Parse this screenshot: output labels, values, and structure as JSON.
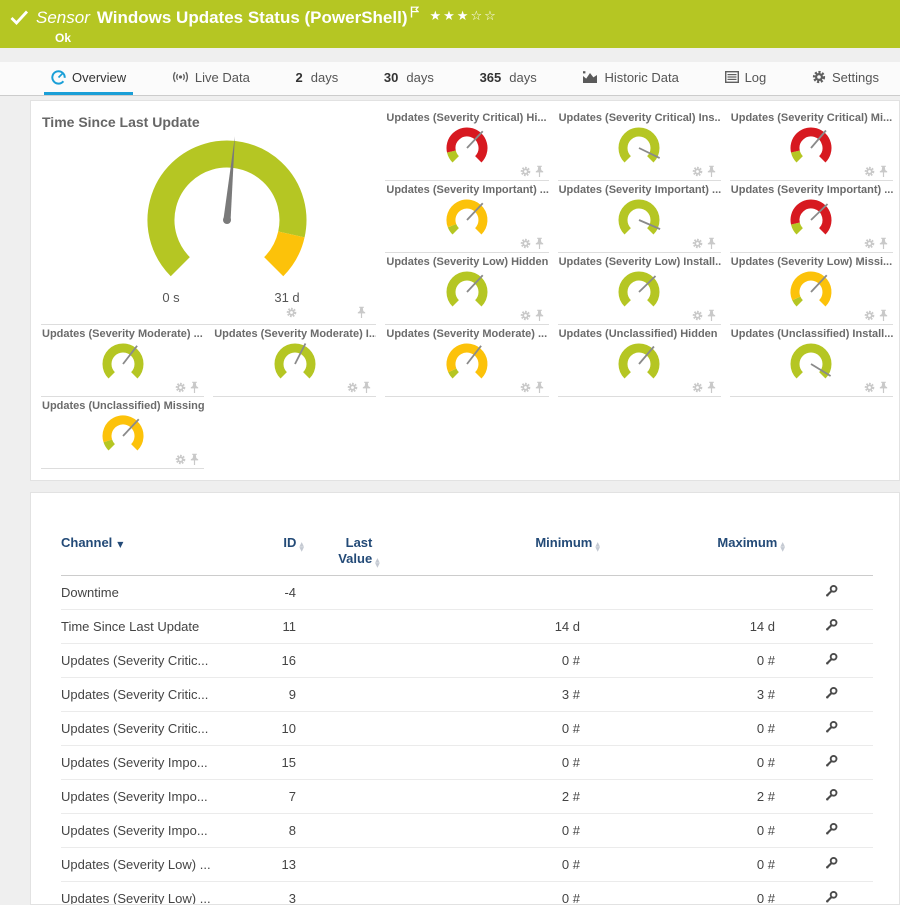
{
  "colors": {
    "status_green": "#b5c623",
    "warn_yellow": "#fcc20a",
    "alarm_red": "#d71920",
    "accent_blue": "#1a9fd7",
    "table_header_navy": "#234a77",
    "needle_gray": "#7a7a7a"
  },
  "header": {
    "kind": "Sensor",
    "title": "Windows Updates Status (PowerShell)",
    "status": "Ok",
    "stars": "★★★☆☆",
    "stars_filled": 3,
    "stars_total": 5
  },
  "tabs": [
    {
      "id": "overview",
      "label": "Overview",
      "active": true
    },
    {
      "id": "live-data",
      "label": "Live Data",
      "active": false
    },
    {
      "id": "2-days",
      "num": "2",
      "label": "days",
      "active": false
    },
    {
      "id": "30-days",
      "num": "30",
      "label": "days",
      "active": false
    },
    {
      "id": "365-days",
      "num": "365",
      "label": "days",
      "active": false
    },
    {
      "id": "historic-data",
      "label": "Historic Data",
      "active": false
    },
    {
      "id": "log",
      "label": "Log",
      "active": false
    },
    {
      "id": "settings",
      "label": "Settings",
      "active": false
    }
  ],
  "chart_data": {
    "type": "gauges",
    "big_gauge": {
      "title": "Time Since Last Update",
      "min_label": "0 s",
      "max_label": "31 d",
      "needle_pct": 0.52,
      "segments": [
        {
          "from": 0,
          "to": 0.88,
          "color": "#b5c623"
        },
        {
          "from": 0.88,
          "to": 1,
          "color": "#fcc20a"
        }
      ]
    },
    "small_gauges": [
      {
        "label": "Updates (Severity Critical) Hi...",
        "needle_pct": 0.66,
        "segments": [
          {
            "from": 0,
            "to": 0.12,
            "color": "#b5c623"
          },
          {
            "from": 0.12,
            "to": 1,
            "color": "#d71920"
          }
        ]
      },
      {
        "label": "Updates (Severity Critical) Ins...",
        "needle_pct": 0.93,
        "segments": [
          {
            "from": 0,
            "to": 1,
            "color": "#b5c623"
          }
        ]
      },
      {
        "label": "Updates (Severity Critical) Mi...",
        "needle_pct": 0.65,
        "segments": [
          {
            "from": 0,
            "to": 0.12,
            "color": "#b5c623"
          },
          {
            "from": 0.12,
            "to": 1,
            "color": "#d71920"
          }
        ]
      },
      {
        "label": "Updates (Severity Important) ...",
        "needle_pct": 0.66,
        "segments": [
          {
            "from": 0,
            "to": 0.09,
            "color": "#b5c623"
          },
          {
            "from": 0.09,
            "to": 1,
            "color": "#fcc20a"
          }
        ]
      },
      {
        "label": "Updates (Severity Important) ...",
        "needle_pct": 0.92,
        "segments": [
          {
            "from": 0,
            "to": 1,
            "color": "#b5c623"
          }
        ]
      },
      {
        "label": "Updates (Severity Important) ...",
        "needle_pct": 0.67,
        "segments": [
          {
            "from": 0,
            "to": 0.12,
            "color": "#b5c623"
          },
          {
            "from": 0.12,
            "to": 1,
            "color": "#d71920"
          }
        ]
      },
      {
        "label": "Updates (Severity Low) Hidden",
        "needle_pct": 0.66,
        "segments": [
          {
            "from": 0,
            "to": 1,
            "color": "#b5c623"
          }
        ]
      },
      {
        "label": "Updates (Severity Low) Install...",
        "needle_pct": 0.67,
        "segments": [
          {
            "from": 0,
            "to": 1,
            "color": "#b5c623"
          }
        ]
      },
      {
        "label": "Updates (Severity Low) Missi...",
        "needle_pct": 0.66,
        "segments": [
          {
            "from": 0,
            "to": 0.08,
            "color": "#b5c623"
          },
          {
            "from": 0.08,
            "to": 1,
            "color": "#fcc20a"
          }
        ]
      },
      {
        "label": "Updates (Severity Moderate) ...",
        "needle_pct": 0.64,
        "segments": [
          {
            "from": 0,
            "to": 1,
            "color": "#b5c623"
          }
        ]
      },
      {
        "label": "Updates (Severity Moderate) I...",
        "needle_pct": 0.6,
        "segments": [
          {
            "from": 0,
            "to": 1,
            "color": "#b5c623"
          }
        ]
      },
      {
        "label": "Updates (Severity Moderate) ...",
        "needle_pct": 0.64,
        "segments": [
          {
            "from": 0,
            "to": 0.08,
            "color": "#b5c623"
          },
          {
            "from": 0.08,
            "to": 1,
            "color": "#fcc20a"
          }
        ]
      },
      {
        "label": "Updates (Unclassified) Hidden",
        "needle_pct": 0.65,
        "segments": [
          {
            "from": 0,
            "to": 1,
            "color": "#b5c623"
          }
        ]
      },
      {
        "label": "Updates (Unclassified) Install...",
        "needle_pct": 0.95,
        "segments": [
          {
            "from": 0,
            "to": 1,
            "color": "#b5c623"
          }
        ]
      },
      {
        "label": "Updates (Unclassified) Missing",
        "needle_pct": 0.66,
        "segments": [
          {
            "from": 0,
            "to": 0.1,
            "color": "#b5c623"
          },
          {
            "from": 0.1,
            "to": 1,
            "color": "#fcc20a"
          }
        ]
      }
    ]
  },
  "table": {
    "headers": {
      "channel": "Channel",
      "id": "ID",
      "last_value": "Last Value",
      "minimum": "Minimum",
      "maximum": "Maximum"
    },
    "rows": [
      {
        "channel": "Downtime",
        "id": "-4",
        "last_value": "",
        "min": "",
        "max": ""
      },
      {
        "channel": "Time Since Last Update",
        "id": "11",
        "last_value": "",
        "min": "14 d",
        "max": "14 d"
      },
      {
        "channel": "Updates (Severity Critic...",
        "id": "16",
        "last_value": "",
        "min": "0 #",
        "max": "0 #"
      },
      {
        "channel": "Updates (Severity Critic...",
        "id": "9",
        "last_value": "",
        "min": "3 #",
        "max": "3 #"
      },
      {
        "channel": "Updates (Severity Critic...",
        "id": "10",
        "last_value": "",
        "min": "0 #",
        "max": "0 #"
      },
      {
        "channel": "Updates (Severity Impo...",
        "id": "15",
        "last_value": "",
        "min": "0 #",
        "max": "0 #"
      },
      {
        "channel": "Updates (Severity Impo...",
        "id": "7",
        "last_value": "",
        "min": "2 #",
        "max": "2 #"
      },
      {
        "channel": "Updates (Severity Impo...",
        "id": "8",
        "last_value": "",
        "min": "0 #",
        "max": "0 #"
      },
      {
        "channel": "Updates (Severity Low) ...",
        "id": "13",
        "last_value": "",
        "min": "0 #",
        "max": "0 #"
      },
      {
        "channel": "Updates (Severity Low) ...",
        "id": "3",
        "last_value": "",
        "min": "0 #",
        "max": "0 #"
      }
    ]
  }
}
